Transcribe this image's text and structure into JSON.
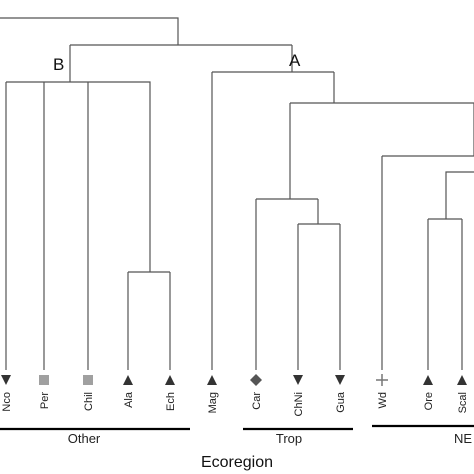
{
  "clusters": {
    "a_label": "A",
    "b_label": "B"
  },
  "taxa": [
    {
      "id": "nco",
      "label": "Nco",
      "marker": "triangle-down",
      "color": "#333333"
    },
    {
      "id": "per",
      "label": "Per",
      "marker": "square",
      "color": "#a0a0a0"
    },
    {
      "id": "chil",
      "label": "Chil",
      "marker": "square",
      "color": "#a0a0a0"
    },
    {
      "id": "ala",
      "label": "Ala",
      "marker": "triangle-up",
      "color": "#333333"
    },
    {
      "id": "ech",
      "label": "Ech",
      "marker": "triangle-up",
      "color": "#333333"
    },
    {
      "id": "mag",
      "label": "Mag",
      "marker": "triangle-up",
      "color": "#333333"
    },
    {
      "id": "car",
      "label": "Car",
      "marker": "diamond",
      "color": "#555555"
    },
    {
      "id": "chni",
      "label": "ChNi",
      "marker": "triangle-down",
      "color": "#333333"
    },
    {
      "id": "gua",
      "label": "Gua",
      "marker": "triangle-down",
      "color": "#333333"
    },
    {
      "id": "wd",
      "label": "Wd",
      "marker": "plus",
      "color": "#777777"
    },
    {
      "id": "ore",
      "label": "Ore",
      "marker": "triangle-up",
      "color": "#333333"
    },
    {
      "id": "scal",
      "label": "Scal",
      "marker": "triangle-up",
      "color": "#333333"
    }
  ],
  "groups": [
    {
      "id": "other",
      "label": "Other"
    },
    {
      "id": "trop",
      "label": "Trop"
    },
    {
      "id": "ne",
      "label": "NE"
    }
  ],
  "axis_title": "Ecoregion",
  "colors": {
    "line": "#555555",
    "group_bar": "#000000",
    "text": "#222222"
  }
}
